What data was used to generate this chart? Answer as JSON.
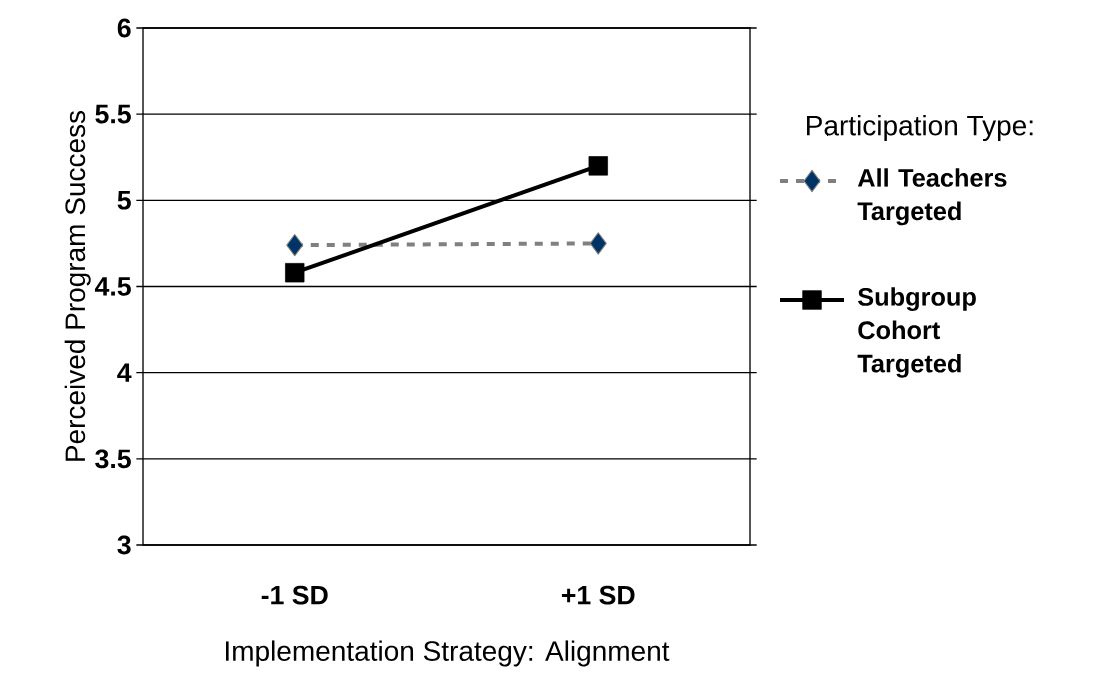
{
  "chart_data": {
    "type": "line",
    "categories": [
      "-1 SD",
      "+1 SD"
    ],
    "xlabel": "Implementation Strategy: Alignment",
    "ylabel": "Perceived Program Success",
    "legend_title": "Participation Type:",
    "series": [
      {
        "name": "All Teachers Targeted",
        "color": "#808080",
        "colors": [
          "#003366",
          "#003366"
        ],
        "marker": "diamond",
        "line_style": "dashed",
        "values": [
          4.74,
          4.75
        ]
      },
      {
        "name": "Subgroup Cohort Targeted",
        "color": "#000000",
        "marker": "square",
        "line_style": "solid",
        "values": [
          4.58,
          5.2
        ]
      }
    ],
    "ylim": [
      3,
      6
    ],
    "yticks": [
      3,
      3.5,
      4,
      4.5,
      5,
      5.5,
      6
    ],
    "grid": "y",
    "legend": "right"
  }
}
